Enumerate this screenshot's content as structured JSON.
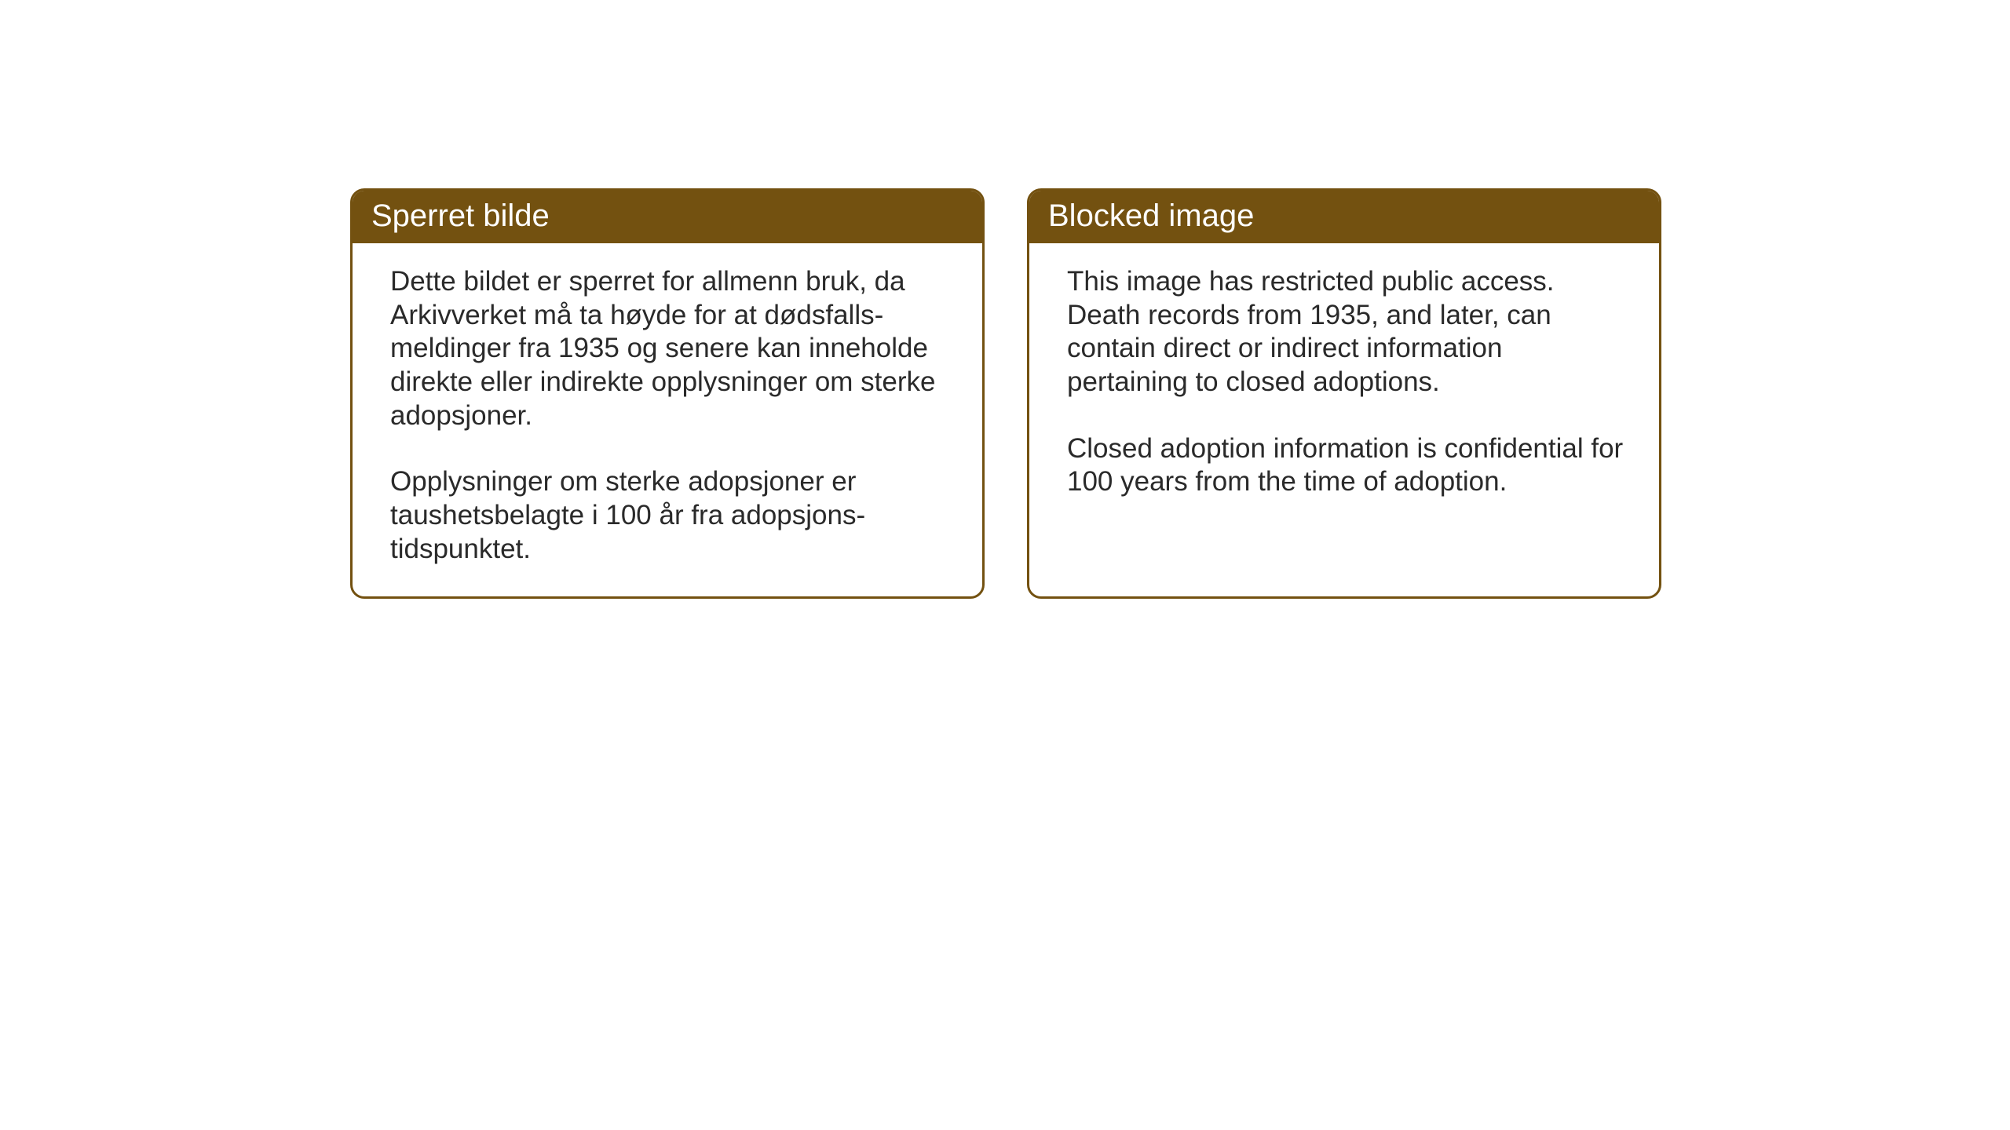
{
  "cards": [
    {
      "title": "Sperret bilde",
      "paragraph1": "Dette bildet er sperret for allmenn bruk,\nda Arkivverket må ta høyde for at dødsfalls-\nmeldinger fra 1935 og senere kan inneholde direkte eller indirekte opplysninger om sterke adopsjoner.",
      "paragraph2": "Opplysninger om sterke adopsjoner er taushetsbelagte i 100 år fra adopsjons-\ntidspunktet."
    },
    {
      "title": "Blocked image",
      "paragraph1": "This image has restricted public access. Death records from 1935, and later, can contain direct or indirect information pertaining to closed adoptions.",
      "paragraph2": "Closed adoption information is confidential for 100 years from the time of adoption."
    }
  ],
  "styling": {
    "header_bg_color": "#735110",
    "header_text_color": "#ffffff",
    "border_color": "#735110",
    "body_bg_color": "#ffffff",
    "body_text_color": "#2a2a2a",
    "title_fontsize": 40,
    "body_fontsize": 35,
    "border_radius": 18,
    "border_width": 3
  }
}
